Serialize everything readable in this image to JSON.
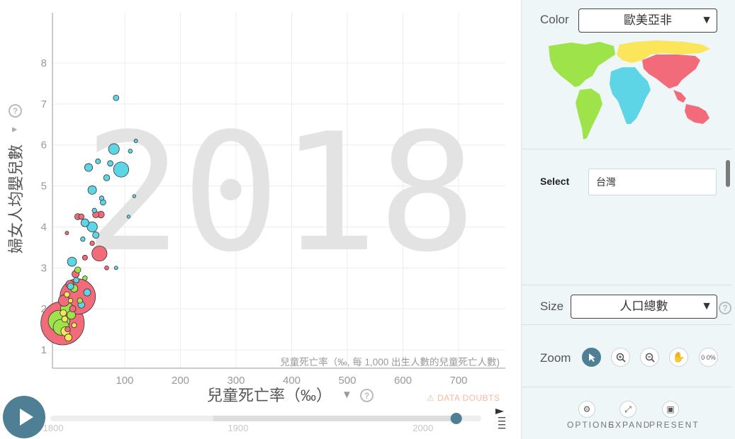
{
  "chart_data": {
    "type": "scatter",
    "year_watermark": "2018",
    "xlabel": "兒童死亡率（‰）",
    "ylabel": "婦女人均嬰兒數",
    "x_axis_note": "兒童死亡率（‰, 每 1,000 出生人數的兒童死亡人數)",
    "x_ticks": [
      100,
      200,
      300,
      400,
      500,
      600,
      700
    ],
    "y_ticks": [
      1,
      2,
      3,
      4,
      5,
      6,
      7,
      8
    ],
    "xlim": [
      0,
      810
    ],
    "ylim": [
      0.75,
      9.2
    ],
    "region_colors": {
      "americas": "#9ee34a",
      "europe": "#fbe55b",
      "africa": "#5ed5e7",
      "asia": "#f16b7a"
    },
    "points": [
      {
        "x": 14,
        "y": 1.65,
        "s": 900,
        "region": "asia"
      },
      {
        "x": 35,
        "y": 2.3,
        "s": 600,
        "region": "asia"
      },
      {
        "x": 9,
        "y": 1.7,
        "s": 220,
        "region": "americas"
      },
      {
        "x": 12,
        "y": 1.55,
        "s": 120,
        "region": "americas"
      },
      {
        "x": 20,
        "y": 2.0,
        "s": 80,
        "region": "americas"
      },
      {
        "x": 16,
        "y": 2.2,
        "s": 60,
        "region": "asia"
      },
      {
        "x": 18,
        "y": 1.45,
        "s": 40,
        "region": "europe"
      },
      {
        "x": 26,
        "y": 1.85,
        "s": 35,
        "region": "americas"
      },
      {
        "x": 24,
        "y": 2.6,
        "s": 30,
        "region": "asia"
      },
      {
        "x": 30,
        "y": 2.5,
        "s": 28,
        "region": "americas"
      },
      {
        "x": 22,
        "y": 1.3,
        "s": 25,
        "region": "europe"
      },
      {
        "x": 28,
        "y": 2.0,
        "s": 20,
        "region": "asia"
      },
      {
        "x": 32,
        "y": 2.85,
        "s": 25,
        "region": "asia"
      },
      {
        "x": 35,
        "y": 2.95,
        "s": 18,
        "region": "americas"
      },
      {
        "x": 20,
        "y": 2.35,
        "s": 15,
        "region": "europe"
      },
      {
        "x": 15,
        "y": 1.9,
        "s": 20,
        "region": "europe"
      },
      {
        "x": 40,
        "y": 2.1,
        "s": 22,
        "region": "africa"
      },
      {
        "x": 48,
        "y": 2.4,
        "s": 24,
        "region": "africa"
      },
      {
        "x": 27,
        "y": 3.15,
        "s": 40,
        "region": "africa"
      },
      {
        "x": 65,
        "y": 3.35,
        "s": 110,
        "region": "asia"
      },
      {
        "x": 55,
        "y": 4.0,
        "s": 50,
        "region": "africa"
      },
      {
        "x": 45,
        "y": 4.1,
        "s": 30,
        "region": "africa"
      },
      {
        "x": 60,
        "y": 4.3,
        "s": 20,
        "region": "asia"
      },
      {
        "x": 35,
        "y": 4.25,
        "s": 18,
        "region": "asia"
      },
      {
        "x": 70,
        "y": 4.6,
        "s": 15,
        "region": "africa"
      },
      {
        "x": 55,
        "y": 4.9,
        "s": 35,
        "region": "africa"
      },
      {
        "x": 75,
        "y": 5.2,
        "s": 18,
        "region": "africa"
      },
      {
        "x": 80,
        "y": 5.55,
        "s": 15,
        "region": "africa"
      },
      {
        "x": 63,
        "y": 5.6,
        "s": 12,
        "region": "africa"
      },
      {
        "x": 85,
        "y": 5.9,
        "s": 55,
        "region": "africa"
      },
      {
        "x": 95,
        "y": 5.4,
        "s": 110,
        "region": "africa"
      },
      {
        "x": 50,
        "y": 5.45,
        "s": 30,
        "region": "africa"
      },
      {
        "x": 68,
        "y": 4.7,
        "s": 10,
        "region": "africa"
      },
      {
        "x": 60,
        "y": 3.8,
        "s": 20,
        "region": "africa"
      },
      {
        "x": 42,
        "y": 3.7,
        "s": 10,
        "region": "africa"
      },
      {
        "x": 110,
        "y": 5.85,
        "s": 8,
        "region": "africa"
      },
      {
        "x": 120,
        "y": 6.1,
        "s": 6,
        "region": "africa"
      },
      {
        "x": 117,
        "y": 4.75,
        "s": 5,
        "region": "africa"
      },
      {
        "x": 107,
        "y": 4.25,
        "s": 5,
        "region": "africa"
      },
      {
        "x": 88,
        "y": 7.15,
        "s": 15,
        "region": "africa"
      },
      {
        "x": 58,
        "y": 4.4,
        "s": 10,
        "region": "africa"
      },
      {
        "x": 67,
        "y": 4.3,
        "s": 22,
        "region": "asia"
      },
      {
        "x": 40,
        "y": 4.25,
        "s": 14,
        "region": "asia"
      },
      {
        "x": 75,
        "y": 3.0,
        "s": 8,
        "region": "asia"
      },
      {
        "x": 55,
        "y": 3.6,
        "s": 10,
        "region": "asia"
      },
      {
        "x": 45,
        "y": 3.25,
        "s": 12,
        "region": "asia"
      },
      {
        "x": 20,
        "y": 3.85,
        "s": 6,
        "region": "asia"
      },
      {
        "x": 33,
        "y": 2.7,
        "s": 15,
        "region": "africa"
      },
      {
        "x": 88,
        "y": 3.0,
        "s": 6,
        "region": "africa"
      },
      {
        "x": 25,
        "y": 2.55,
        "s": 20,
        "region": "africa"
      },
      {
        "x": 38,
        "y": 2.2,
        "s": 14,
        "region": "americas"
      },
      {
        "x": 30,
        "y": 1.6,
        "s": 12,
        "region": "europe"
      },
      {
        "x": 17,
        "y": 1.75,
        "s": 18,
        "region": "europe"
      },
      {
        "x": 21,
        "y": 1.5,
        "s": 14,
        "region": "asia"
      },
      {
        "x": 25,
        "y": 2.2,
        "s": 10,
        "region": "europe"
      },
      {
        "x": 45,
        "y": 2.75,
        "s": 10,
        "region": "americas"
      }
    ]
  },
  "timeline": {
    "start": "1800",
    "mid": "1900",
    "end": "2000",
    "start_year": 1800,
    "end_year": 2030,
    "current_year": 2018
  },
  "data_doubts": "DATA DOUBTS",
  "help_glyph": "?",
  "dropdown_arrow": "▼",
  "panel": {
    "color_label": "Color",
    "color_value": "歐美亞非",
    "select_label": "Select",
    "select_value": "台灣",
    "size_label": "Size",
    "size_value": "人口總數",
    "zoom_label": "Zoom",
    "zoom_percent": "0 0%",
    "options_label": "OPTIONS",
    "expand_label": "EXPAND",
    "present_label": "PRESENT"
  }
}
